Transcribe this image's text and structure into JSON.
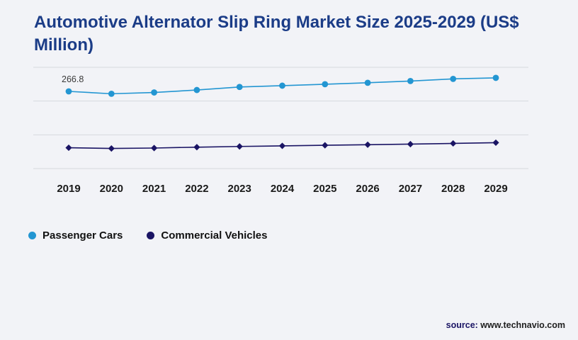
{
  "title": "Automotive Alternator Slip Ring Market Size 2025-2029 (US$ Million)",
  "chart_data": {
    "type": "line",
    "x": [
      2019,
      2020,
      2021,
      2022,
      2023,
      2024,
      2025,
      2026,
      2027,
      2028,
      2029
    ],
    "series": [
      {
        "name": "Passenger Cars",
        "color": "#2396d2",
        "marker": "circle",
        "values": [
          266.8,
          258.5,
          263.0,
          271.5,
          282.0,
          286.5,
          291.5,
          296.5,
          302.5,
          310.0,
          313.5
        ]
      },
      {
        "name": "Commercial Vehicles",
        "color": "#1a1464",
        "marker": "diamond",
        "values": [
          72.0,
          69.5,
          71.0,
          74.0,
          76.5,
          78.5,
          80.5,
          82.5,
          84.5,
          87.0,
          89.5
        ]
      }
    ],
    "data_label": {
      "series_index": 0,
      "point_index": 0,
      "text": "266.8"
    },
    "ylim": [
      0,
      350
    ],
    "grid": true,
    "gridline_count": 4,
    "legend_position": "bottom-left",
    "title": "Automotive Alternator Slip Ring Market Size 2025-2029 (US$ Million)"
  },
  "colors": {
    "title": "#1b3c87",
    "background": "#f2f3f7",
    "gridline": "#d7d9de",
    "tick_label": "#1a1a1a",
    "data_label": "#3a3a3a"
  },
  "source": {
    "prefix": "source:",
    "text": " www.technavio.com"
  }
}
